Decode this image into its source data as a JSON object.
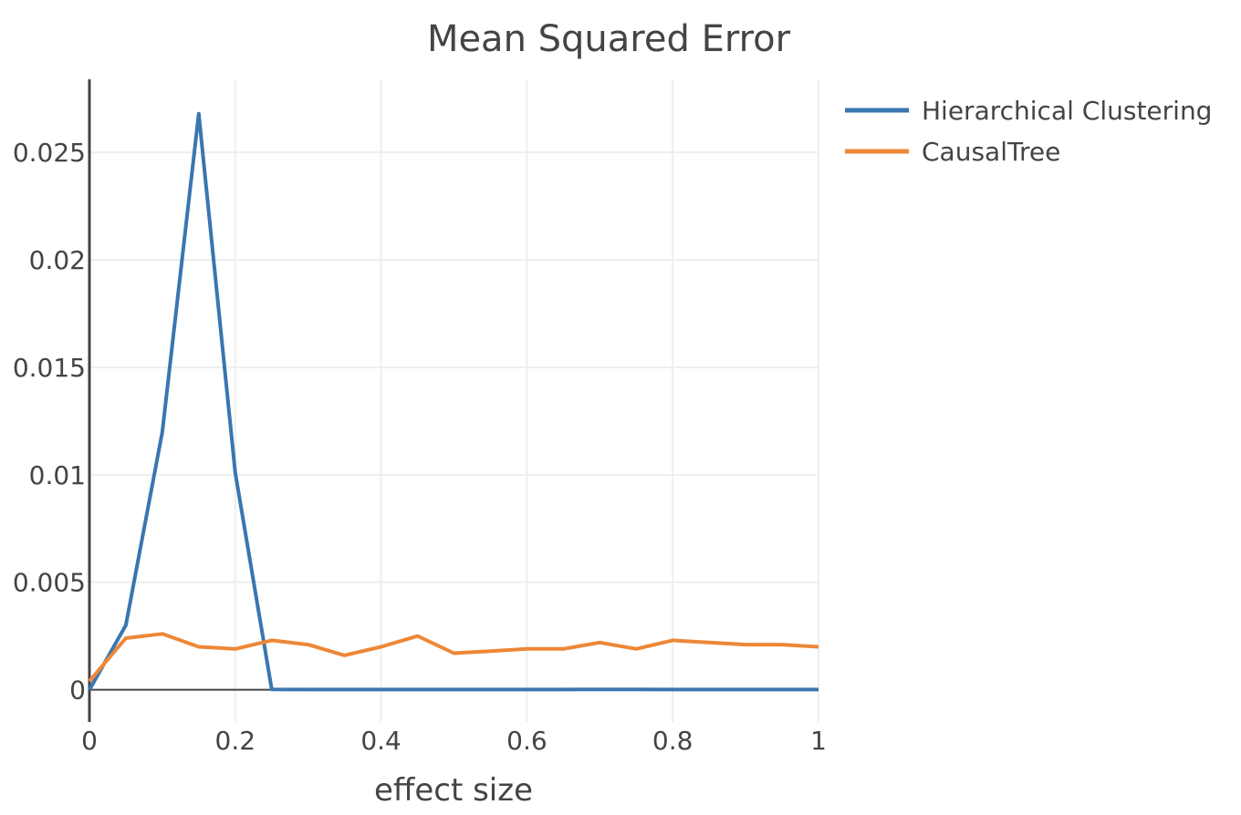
{
  "chart_data": {
    "type": "line",
    "title": "Mean Squared Error",
    "xlabel": "effect size",
    "ylabel": "",
    "xlim": [
      0,
      1
    ],
    "ylim": [
      -0.0015,
      0.0284
    ],
    "x_ticks": [
      0,
      0.2,
      0.4,
      0.6,
      0.8,
      1
    ],
    "x_tick_labels": [
      "0",
      "0.2",
      "0.4",
      "0.6",
      "0.8",
      "1"
    ],
    "y_ticks": [
      0,
      0.005,
      0.01,
      0.015,
      0.02,
      0.025
    ],
    "y_tick_labels": [
      "0",
      "0.005",
      "0.01",
      "0.015",
      "0.02",
      "0.025"
    ],
    "grid": true,
    "legend_position": "top-right, outside plot",
    "x": [
      0,
      0.05,
      0.1,
      0.15,
      0.2,
      0.25,
      0.3,
      0.35,
      0.4,
      0.45,
      0.5,
      0.55,
      0.6,
      0.65,
      0.7,
      0.75,
      0.8,
      0.85,
      0.9,
      0.95,
      1
    ],
    "series": [
      {
        "name": "Hierarchical Clustering",
        "color": "#3a76b0",
        "values": [
          0.0,
          0.003,
          0.012,
          0.0268,
          0.0101,
          2e-05,
          1e-05,
          1e-05,
          1e-05,
          1e-05,
          1e-05,
          1e-05,
          1e-05,
          1e-05,
          2e-05,
          2e-05,
          1e-05,
          1e-05,
          1e-05,
          1e-05,
          1e-05
        ]
      },
      {
        "name": "CausalTree",
        "color": "#ee8736",
        "values": [
          0.0004,
          0.0024,
          0.0026,
          0.002,
          0.0019,
          0.0023,
          0.0021,
          0.0016,
          0.002,
          0.0025,
          0.0017,
          0.0018,
          0.0019,
          0.0019,
          0.0022,
          0.0019,
          0.0023,
          0.0022,
          0.0021,
          0.0021,
          0.002
        ]
      }
    ]
  }
}
